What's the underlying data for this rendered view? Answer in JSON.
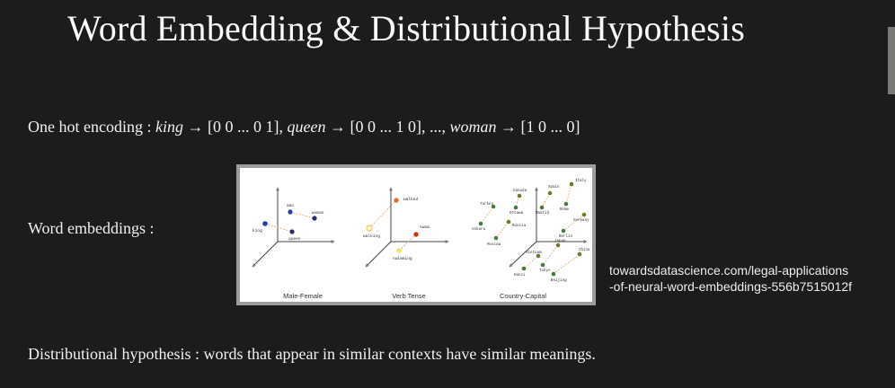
{
  "slide": {
    "title": "Word Embedding & Distributional Hypothesis",
    "one_hot": {
      "label": "One hot encoding : ",
      "w1": "king",
      "arrow1": " → ",
      "v1": "[0 0 ... 0 1], ",
      "w2": "queen",
      "arrow2": " → ",
      "v2": "[0 0 ... 1 0], ..., ",
      "w3": "woman",
      "arrow3": " → ",
      "v3": "[1 0 ... 0]"
    },
    "embeddings_label": "Word embeddings :",
    "distributional": "Distributional hypothesis : words that appear in similar contexts have similar meanings.",
    "source_line1": "towardsdatascience.com/legal-applications",
    "source_line2": "-of-neural-word-embeddings-556b7515012f"
  },
  "figure": {
    "captions": [
      "Male-Female",
      "Verb Tense",
      "Country-Capital"
    ],
    "panel1_words": [
      "man",
      "woman",
      "king",
      "queen"
    ],
    "panel2_words": [
      "walked",
      "swam",
      "walking",
      "swimming"
    ],
    "panel3_words": [
      "Canada",
      "Spain",
      "Italy",
      "Turkey",
      "Madrid",
      "Rome",
      "Germany",
      "Ottawa",
      "Russia",
      "Ankara",
      "Berlin",
      "Moscow",
      "Japan",
      "Vietnam",
      "China",
      "Tokyo",
      "Hanoi",
      "Beijing"
    ],
    "colors": {
      "blue": "#1f3fb0",
      "navy": "#2a2a6a",
      "orange": "#e8702a",
      "yellow": "#f2e64a",
      "red": "#d4321c",
      "olive": "#6e7a2a",
      "green": "#4a7a3a"
    }
  }
}
